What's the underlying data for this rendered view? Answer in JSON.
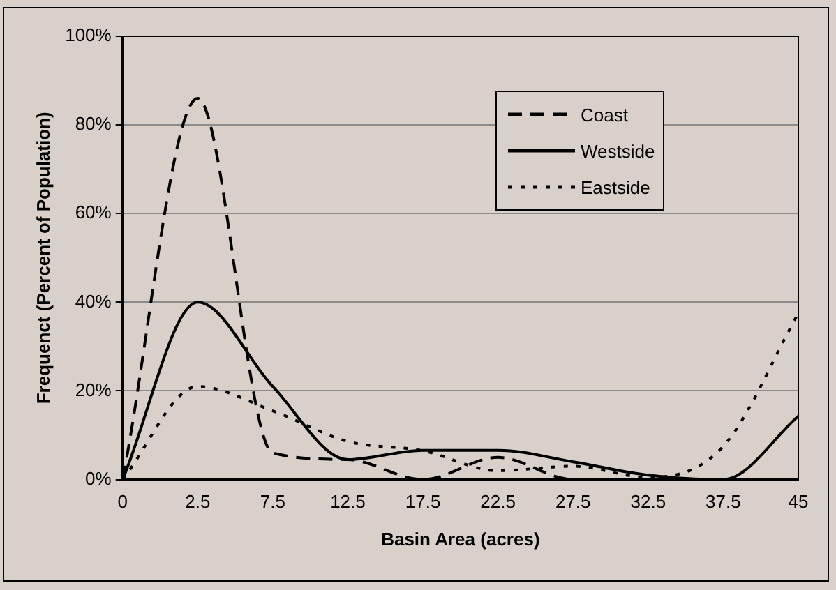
{
  "chart_data": {
    "type": "line",
    "xlabel": "Basin Area (acres)",
    "ylabel": "Frequenct (Percent of Population)",
    "categories": [
      "0",
      "2.5",
      "7.5",
      "12.5",
      "17.5",
      "22.5",
      "27.5",
      "32.5",
      "37.5",
      "45"
    ],
    "series": [
      {
        "name": "Coast",
        "color": "#000000",
        "line_style": "dashed",
        "values": [
          0,
          86,
          6,
          4.5,
          0,
          5,
          0,
          0,
          0,
          0
        ]
      },
      {
        "name": "Westside",
        "color": "#000000",
        "line_style": "solid",
        "values": [
          0,
          40,
          21,
          4.5,
          6.6,
          6.6,
          4,
          1,
          0,
          14.3
        ]
      },
      {
        "name": "Eastside",
        "color": "#000000",
        "line_style": "dotted",
        "values": [
          0,
          21,
          15.5,
          8.6,
          6.5,
          2,
          3,
          0.5,
          7.5,
          37.5
        ]
      }
    ],
    "ylim": [
      0,
      100
    ],
    "yticks": [
      {
        "value": 0,
        "label": "0%"
      },
      {
        "value": 20,
        "label": "20%"
      },
      {
        "value": 40,
        "label": "40%"
      },
      {
        "value": 60,
        "label": "60%"
      },
      {
        "value": 80,
        "label": "80%"
      },
      {
        "value": 100,
        "label": "100%"
      }
    ],
    "grid": "y",
    "legend": "top right",
    "marker": "none"
  }
}
